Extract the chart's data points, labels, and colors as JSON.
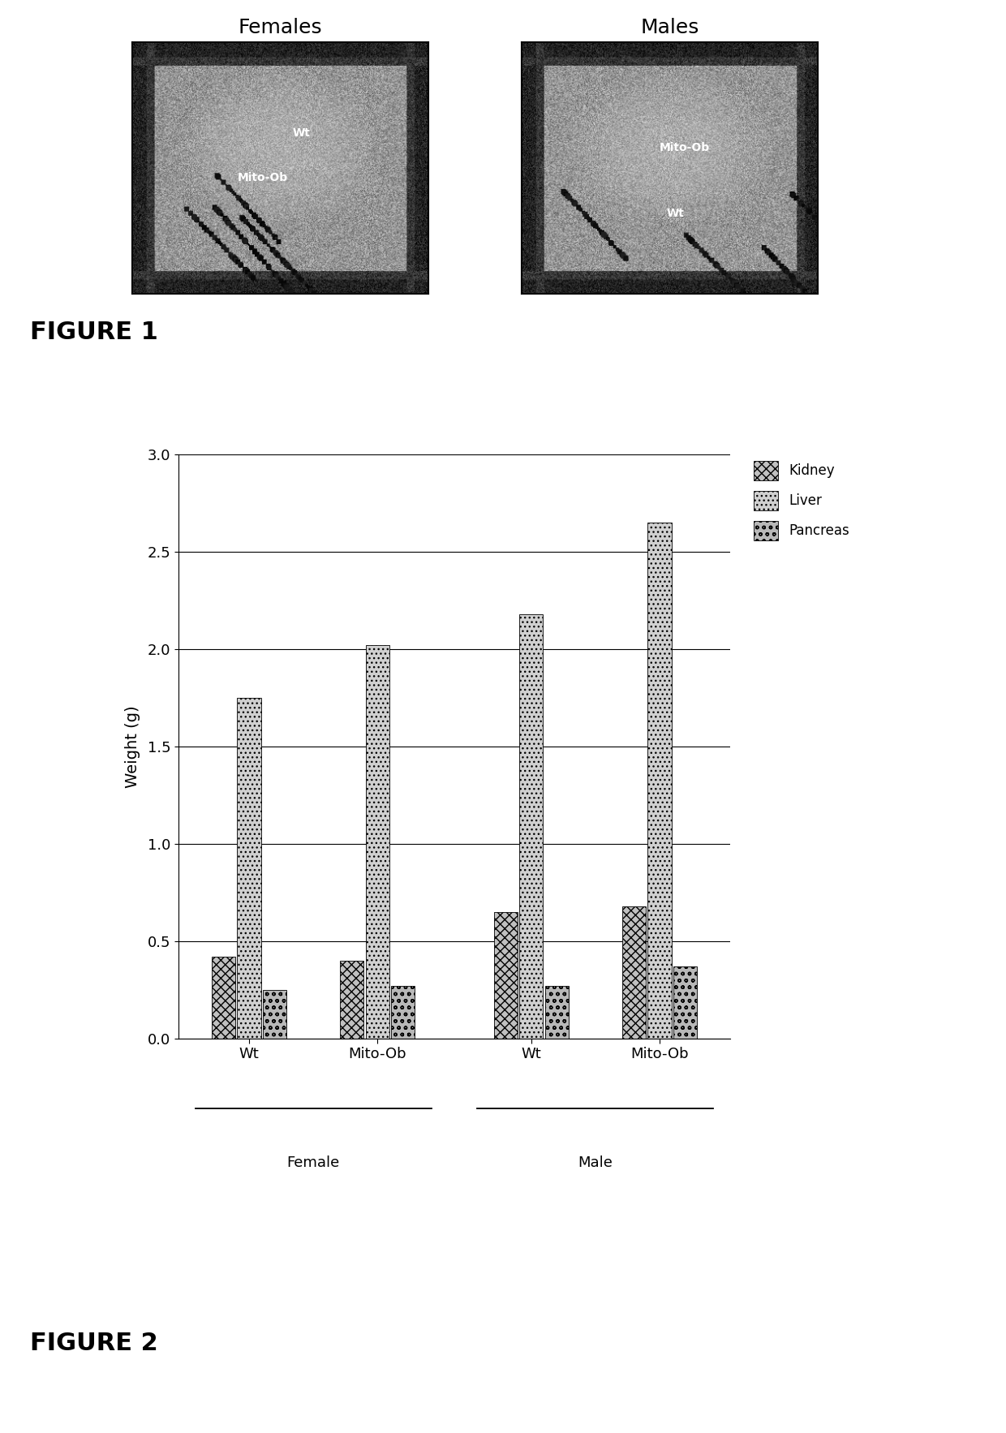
{
  "figure1_label": "FIGURE 1",
  "figure2_label": "FIGURE 2",
  "females_label": "Females",
  "males_label": "Males",
  "img_female_label1": "Mito-Ob",
  "img_female_label2": "Wt",
  "img_male_label1": "Wt",
  "img_male_label2": "Mito-Ob",
  "bar_groups": [
    "Wt",
    "Mito-Ob",
    "Wt",
    "Mito-Ob"
  ],
  "sex_labels": [
    "Female",
    "Male"
  ],
  "ylabel": "Weight (g)",
  "ylim": [
    0,
    3
  ],
  "yticks": [
    0,
    0.5,
    1,
    1.5,
    2,
    2.5,
    3
  ],
  "legend_labels": [
    "Kidney",
    "Liver",
    "Pancreas"
  ],
  "kidney_values": [
    0.42,
    0.4,
    0.65,
    0.68
  ],
  "liver_values": [
    1.75,
    2.02,
    2.18,
    2.65
  ],
  "pancreas_values": [
    0.25,
    0.27,
    0.27,
    0.37
  ],
  "bar_width": 0.2,
  "group_positions": [
    1.0,
    2.0,
    3.2,
    4.2
  ],
  "background_color": "#ffffff",
  "text_color": "#000000"
}
